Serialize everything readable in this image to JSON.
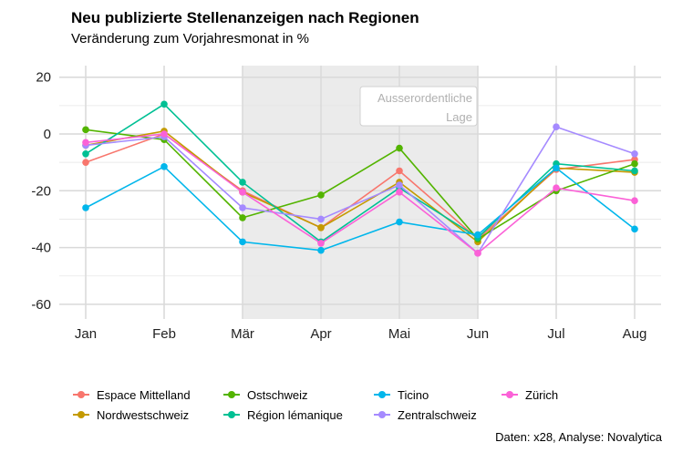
{
  "chart_data": {
    "type": "line",
    "title": "Neu publizierte Stellenanzeigen nach Regionen",
    "subtitle": "Veränderung zum Vorjahresmonat in %",
    "caption": "Daten: x28, Analyse: Novalytica",
    "categories": [
      "Jan",
      "Feb",
      "Mär",
      "Apr",
      "Mai",
      "Jun",
      "Jul",
      "Aug"
    ],
    "ylim": [
      -65,
      22
    ],
    "yticks": [
      20,
      0,
      -20,
      -40,
      -60
    ],
    "grid": true,
    "legend_position": "bottom",
    "annotation": {
      "text_lines": [
        "Ausserordentliche",
        "Lage"
      ],
      "shaded_from": "Mär",
      "shaded_to": "Jun"
    },
    "series": [
      {
        "name": "Espace Mittelland",
        "color": "#F8766D",
        "values": [
          -10,
          0,
          -20,
          -33,
          -13,
          -37,
          -12.5,
          -9
        ]
      },
      {
        "name": "Nordwestschweiz",
        "color": "#C49A00",
        "values": [
          -4,
          1,
          -20.5,
          -33,
          -17,
          -38,
          -12,
          -13.5
        ]
      },
      {
        "name": "Ostschweiz",
        "color": "#53B400",
        "values": [
          1.5,
          -2,
          -29.5,
          -21.5,
          -5,
          -37,
          -20,
          -10.5
        ]
      },
      {
        "name": "Région lémanique",
        "color": "#00C094",
        "values": [
          -7,
          10.5,
          -17,
          -38,
          -19,
          -36.5,
          -10.5,
          -13
        ]
      },
      {
        "name": "Ticino",
        "color": "#00B6EB",
        "values": [
          -26,
          -11.5,
          -38,
          -41,
          -31,
          -35.5,
          -12,
          -33.5
        ]
      },
      {
        "name": "Zentralschweiz",
        "color": "#A58AFF",
        "values": [
          -4,
          -1,
          -26,
          -30,
          -18,
          -42,
          2.5,
          -7
        ]
      },
      {
        "name": "Zürich",
        "color": "#FB61D7",
        "values": [
          -3,
          0,
          -20.5,
          -38.5,
          -20.5,
          -42,
          -19,
          -23.5
        ]
      }
    ]
  }
}
